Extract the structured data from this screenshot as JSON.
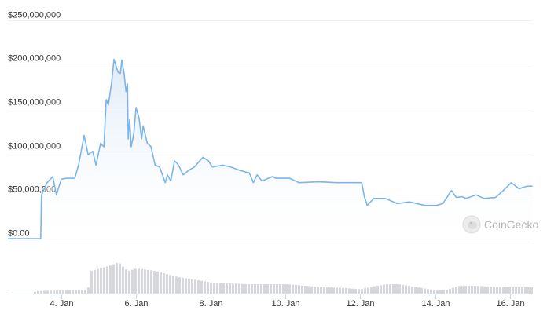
{
  "watermark": "CoinGecko",
  "colors": {
    "line": "#7cb5ec",
    "area_top": "#dbe9f8",
    "area_bottom": "#ffffff",
    "volume_bar": "#d5d7db",
    "grid": "#f0f0f0",
    "axis": "#ccd6eb"
  },
  "chart_data": {
    "type": "area",
    "title": "",
    "xlabel": "",
    "ylabel": "",
    "x_unit": "day of January",
    "ylim": [
      0,
      250000000
    ],
    "xlim": [
      2.57,
      16.62
    ],
    "grid": true,
    "legend": "none",
    "y_ticks": [
      {
        "value": 0,
        "label": "$0.00"
      },
      {
        "value": 50000000,
        "label": "$50,000,000"
      },
      {
        "value": 100000000,
        "label": "$100,000,000"
      },
      {
        "value": 150000000,
        "label": "$150,000,000"
      },
      {
        "value": 200000000,
        "label": "$200,000,000"
      },
      {
        "value": 250000000,
        "label": "$250,000,000"
      }
    ],
    "x_ticks": [
      {
        "value": 4,
        "label": "4. Jan"
      },
      {
        "value": 6,
        "label": "6. Jan"
      },
      {
        "value": 8,
        "label": "8. Jan"
      },
      {
        "value": 10,
        "label": "10. Jan"
      },
      {
        "value": 12,
        "label": "12. Jan"
      },
      {
        "value": 14,
        "label": "14. Jan"
      },
      {
        "value": 16,
        "label": "16. Jan"
      }
    ],
    "series": [
      {
        "type": "line",
        "x": [
          2.57,
          3.45,
          3.47,
          3.62,
          3.77,
          3.87,
          4.0,
          4.15,
          4.36,
          4.46,
          4.61,
          4.72,
          4.84,
          4.93,
          5.05,
          5.14,
          5.2,
          5.26,
          5.35,
          5.41,
          5.52,
          5.58,
          5.62,
          5.68,
          5.73,
          5.77,
          5.79,
          5.83,
          5.87,
          5.94,
          6.0,
          6.08,
          6.15,
          6.19,
          6.3,
          6.4,
          6.51,
          6.63,
          6.78,
          6.84,
          6.93,
          7.03,
          7.1,
          7.16,
          7.26,
          7.41,
          7.56,
          7.79,
          7.94,
          8.04,
          8.32,
          8.53,
          8.78,
          9.03,
          9.14,
          9.24,
          9.37,
          9.66,
          9.73,
          10.11,
          10.36,
          10.88,
          11.37,
          12.04,
          12.11,
          12.19,
          12.36,
          12.67,
          12.99,
          13.31,
          13.73,
          14.04,
          14.21,
          14.3,
          14.44,
          14.57,
          14.72,
          14.84,
          15.1,
          15.31,
          15.62,
          15.83,
          16.04,
          16.25,
          16.46,
          16.61
        ],
        "y": [
          0,
          0,
          50000000,
          64000000,
          71000000,
          50000000,
          68000000,
          69000000,
          69000000,
          84000000,
          118000000,
          96000000,
          100000000,
          84000000,
          109000000,
          105000000,
          159000000,
          153000000,
          180000000,
          205000000,
          190000000,
          189000000,
          204000000,
          189000000,
          168000000,
          177000000,
          114000000,
          136000000,
          105000000,
          120000000,
          150000000,
          138000000,
          114000000,
          129000000,
          109000000,
          105000000,
          84000000,
          82000000,
          64000000,
          73000000,
          66000000,
          89000000,
          86000000,
          82000000,
          73000000,
          78000000,
          82000000,
          93000000,
          89000000,
          82000000,
          84000000,
          82000000,
          78000000,
          75000000,
          64000000,
          73000000,
          66000000,
          71000000,
          69000000,
          69000000,
          64000000,
          65000000,
          64000000,
          64000000,
          48000000,
          38000000,
          46000000,
          46000000,
          40000000,
          42000000,
          38000000,
          38000000,
          40000000,
          46000000,
          55000000,
          47000000,
          48000000,
          46000000,
          50000000,
          46000000,
          47000000,
          55000000,
          64000000,
          57000000,
          60000000,
          60000000
        ]
      },
      {
        "type": "bar",
        "name": "",
        "relative_volume_x": [
          2.57,
          3.2,
          3.3,
          4.6,
          4.7,
          4.75,
          5.0,
          5.3,
          5.5,
          5.65,
          5.75,
          6.0,
          6.5,
          7.0,
          7.5,
          8.0,
          8.5,
          9.0,
          9.5,
          10.0,
          10.5,
          11.0,
          11.5,
          12.0,
          12.3,
          12.7,
          13.0,
          13.5,
          14.0,
          14.3,
          14.6,
          15.0,
          15.5,
          16.0,
          16.61
        ],
        "relative_volume": [
          0,
          0,
          0.08,
          0.12,
          0.2,
          0.72,
          0.8,
          0.9,
          1.0,
          0.82,
          0.72,
          0.8,
          0.72,
          0.55,
          0.45,
          0.35,
          0.32,
          0.3,
          0.3,
          0.3,
          0.25,
          0.2,
          0.18,
          0.14,
          0.22,
          0.3,
          0.3,
          0.2,
          0.1,
          0.12,
          0.24,
          0.25,
          0.22,
          0.2,
          0.2
        ]
      }
    ]
  }
}
